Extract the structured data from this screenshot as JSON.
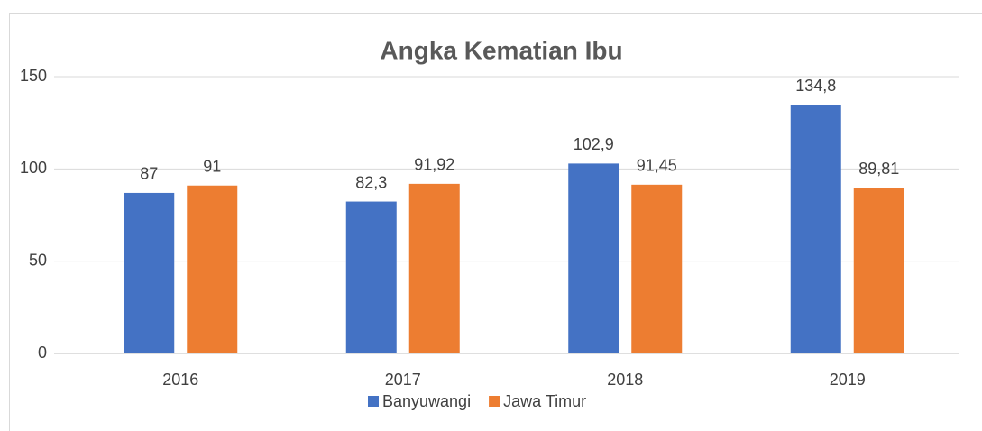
{
  "chart_data": {
    "type": "bar",
    "title": "Angka Kematian Ibu",
    "categories": [
      "2016",
      "2017",
      "2018",
      "2019"
    ],
    "series": [
      {
        "name": "Banyuwangi",
        "color": "#4472c4",
        "values": [
          87,
          82.3,
          102.9,
          134.8
        ],
        "value_labels": [
          "87",
          "82,3",
          "102,9",
          "134,8"
        ]
      },
      {
        "name": "Jawa Timur",
        "color": "#ed7d31",
        "values": [
          91,
          91.92,
          91.45,
          89.81
        ],
        "value_labels": [
          "91",
          "91,92",
          "91,45",
          "89,81"
        ]
      }
    ],
    "ylim": [
      0,
      150
    ],
    "yticks": [
      0,
      50,
      100,
      150
    ],
    "grid": true,
    "legend": "bottom"
  }
}
